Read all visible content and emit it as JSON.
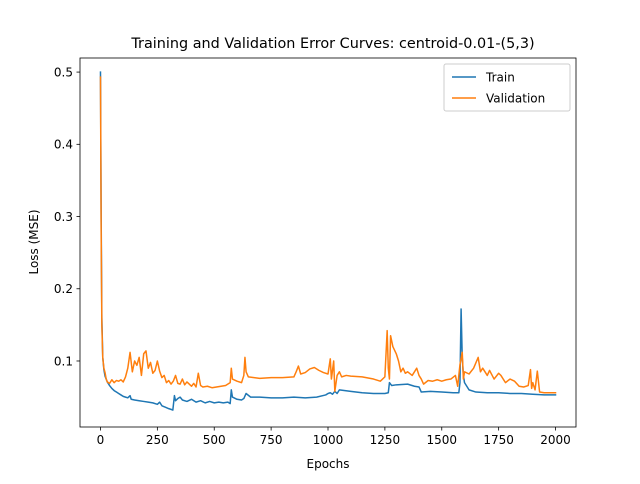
{
  "chart_data": {
    "type": "line",
    "title": "Training and Validation Error Curves: centroid-0.01-(5,3)",
    "xlabel": "Epochs",
    "ylabel": "Loss (MSE)",
    "xlim": [
      -90,
      2090
    ],
    "ylim": [
      0.0086,
      0.5195
    ],
    "xticks": [
      0,
      250,
      500,
      750,
      1000,
      1250,
      1500,
      1750,
      2000
    ],
    "yticks": [
      0.1,
      0.2,
      0.3,
      0.4,
      0.5
    ],
    "grid": false,
    "legend": "top-right",
    "series": [
      {
        "name": "Train",
        "color": "#1f77b4",
        "points": [
          [
            0,
            0.5
          ],
          [
            3,
            0.3
          ],
          [
            6,
            0.16
          ],
          [
            10,
            0.105
          ],
          [
            15,
            0.088
          ],
          [
            20,
            0.079
          ],
          [
            30,
            0.071
          ],
          [
            40,
            0.066
          ],
          [
            50,
            0.062
          ],
          [
            60,
            0.059
          ],
          [
            70,
            0.057
          ],
          [
            80,
            0.055
          ],
          [
            90,
            0.053
          ],
          [
            100,
            0.051
          ],
          [
            110,
            0.05
          ],
          [
            120,
            0.049
          ],
          [
            130,
            0.052
          ],
          [
            135,
            0.047
          ],
          [
            150,
            0.046
          ],
          [
            170,
            0.045
          ],
          [
            190,
            0.044
          ],
          [
            210,
            0.043
          ],
          [
            230,
            0.042
          ],
          [
            250,
            0.04
          ],
          [
            260,
            0.043
          ],
          [
            270,
            0.038
          ],
          [
            285,
            0.036
          ],
          [
            300,
            0.034
          ],
          [
            310,
            0.033
          ],
          [
            318,
            0.032
          ],
          [
            325,
            0.052
          ],
          [
            330,
            0.045
          ],
          [
            340,
            0.048
          ],
          [
            350,
            0.05
          ],
          [
            360,
            0.046
          ],
          [
            380,
            0.044
          ],
          [
            400,
            0.047
          ],
          [
            420,
            0.043
          ],
          [
            440,
            0.045
          ],
          [
            460,
            0.042
          ],
          [
            480,
            0.044
          ],
          [
            500,
            0.042
          ],
          [
            520,
            0.043
          ],
          [
            540,
            0.042
          ],
          [
            560,
            0.043
          ],
          [
            570,
            0.041
          ],
          [
            575,
            0.06
          ],
          [
            580,
            0.05
          ],
          [
            600,
            0.047
          ],
          [
            620,
            0.046
          ],
          [
            630,
            0.048
          ],
          [
            640,
            0.055
          ],
          [
            660,
            0.05
          ],
          [
            700,
            0.05
          ],
          [
            750,
            0.049
          ],
          [
            800,
            0.049
          ],
          [
            850,
            0.05
          ],
          [
            900,
            0.049
          ],
          [
            950,
            0.05
          ],
          [
            990,
            0.053
          ],
          [
            1000,
            0.055
          ],
          [
            1010,
            0.056
          ],
          [
            1020,
            0.054
          ],
          [
            1030,
            0.058
          ],
          [
            1040,
            0.055
          ],
          [
            1050,
            0.06
          ],
          [
            1100,
            0.058
          ],
          [
            1150,
            0.056
          ],
          [
            1200,
            0.055
          ],
          [
            1250,
            0.055
          ],
          [
            1265,
            0.056
          ],
          [
            1270,
            0.07
          ],
          [
            1280,
            0.066
          ],
          [
            1300,
            0.067
          ],
          [
            1350,
            0.068
          ],
          [
            1380,
            0.065
          ],
          [
            1400,
            0.064
          ],
          [
            1410,
            0.057
          ],
          [
            1450,
            0.058
          ],
          [
            1500,
            0.057
          ],
          [
            1550,
            0.056
          ],
          [
            1575,
            0.056
          ],
          [
            1580,
            0.07
          ],
          [
            1585,
            0.172
          ],
          [
            1590,
            0.105
          ],
          [
            1595,
            0.08
          ],
          [
            1600,
            0.07
          ],
          [
            1620,
            0.06
          ],
          [
            1650,
            0.057
          ],
          [
            1700,
            0.056
          ],
          [
            1750,
            0.056
          ],
          [
            1800,
            0.055
          ],
          [
            1850,
            0.055
          ],
          [
            1900,
            0.054
          ],
          [
            1950,
            0.053
          ],
          [
            2000,
            0.053
          ]
        ]
      },
      {
        "name": "Validation",
        "color": "#ff7f0e",
        "points": [
          [
            0,
            0.493
          ],
          [
            3,
            0.28
          ],
          [
            6,
            0.15
          ],
          [
            10,
            0.105
          ],
          [
            15,
            0.09
          ],
          [
            20,
            0.084
          ],
          [
            25,
            0.075
          ],
          [
            30,
            0.071
          ],
          [
            40,
            0.069
          ],
          [
            50,
            0.074
          ],
          [
            60,
            0.07
          ],
          [
            70,
            0.073
          ],
          [
            80,
            0.072
          ],
          [
            90,
            0.074
          ],
          [
            100,
            0.071
          ],
          [
            110,
            0.078
          ],
          [
            120,
            0.09
          ],
          [
            130,
            0.112
          ],
          [
            140,
            0.085
          ],
          [
            150,
            0.1
          ],
          [
            160,
            0.094
          ],
          [
            170,
            0.105
          ],
          [
            180,
            0.08
          ],
          [
            190,
            0.11
          ],
          [
            200,
            0.114
          ],
          [
            210,
            0.09
          ],
          [
            220,
            0.098
          ],
          [
            230,
            0.083
          ],
          [
            240,
            0.087
          ],
          [
            250,
            0.1
          ],
          [
            260,
            0.086
          ],
          [
            270,
            0.077
          ],
          [
            280,
            0.08
          ],
          [
            290,
            0.07
          ],
          [
            300,
            0.073
          ],
          [
            310,
            0.068
          ],
          [
            320,
            0.072
          ],
          [
            330,
            0.08
          ],
          [
            340,
            0.069
          ],
          [
            350,
            0.068
          ],
          [
            360,
            0.075
          ],
          [
            370,
            0.067
          ],
          [
            380,
            0.071
          ],
          [
            390,
            0.068
          ],
          [
            400,
            0.065
          ],
          [
            410,
            0.069
          ],
          [
            420,
            0.064
          ],
          [
            430,
            0.083
          ],
          [
            440,
            0.066
          ],
          [
            450,
            0.064
          ],
          [
            470,
            0.065
          ],
          [
            490,
            0.063
          ],
          [
            510,
            0.064
          ],
          [
            530,
            0.065
          ],
          [
            550,
            0.066
          ],
          [
            570,
            0.07
          ],
          [
            575,
            0.09
          ],
          [
            580,
            0.075
          ],
          [
            600,
            0.072
          ],
          [
            620,
            0.07
          ],
          [
            630,
            0.08
          ],
          [
            635,
            0.105
          ],
          [
            640,
            0.085
          ],
          [
            650,
            0.078
          ],
          [
            700,
            0.076
          ],
          [
            750,
            0.077
          ],
          [
            800,
            0.077
          ],
          [
            850,
            0.078
          ],
          [
            860,
            0.085
          ],
          [
            870,
            0.093
          ],
          [
            880,
            0.082
          ],
          [
            900,
            0.084
          ],
          [
            920,
            0.089
          ],
          [
            940,
            0.091
          ],
          [
            960,
            0.087
          ],
          [
            980,
            0.084
          ],
          [
            1000,
            0.082
          ],
          [
            1010,
            0.103
          ],
          [
            1015,
            0.075
          ],
          [
            1025,
            0.1
          ],
          [
            1030,
            0.058
          ],
          [
            1040,
            0.08
          ],
          [
            1050,
            0.085
          ],
          [
            1060,
            0.078
          ],
          [
            1080,
            0.08
          ],
          [
            1100,
            0.079
          ],
          [
            1150,
            0.078
          ],
          [
            1200,
            0.075
          ],
          [
            1230,
            0.072
          ],
          [
            1250,
            0.078
          ],
          [
            1260,
            0.142
          ],
          [
            1265,
            0.09
          ],
          [
            1270,
            0.075
          ],
          [
            1275,
            0.135
          ],
          [
            1285,
            0.12
          ],
          [
            1300,
            0.11
          ],
          [
            1310,
            0.1
          ],
          [
            1320,
            0.085
          ],
          [
            1330,
            0.09
          ],
          [
            1340,
            0.083
          ],
          [
            1350,
            0.085
          ],
          [
            1370,
            0.08
          ],
          [
            1390,
            0.09
          ],
          [
            1400,
            0.08
          ],
          [
            1410,
            0.075
          ],
          [
            1420,
            0.068
          ],
          [
            1440,
            0.073
          ],
          [
            1460,
            0.072
          ],
          [
            1480,
            0.074
          ],
          [
            1500,
            0.072
          ],
          [
            1520,
            0.074
          ],
          [
            1540,
            0.075
          ],
          [
            1560,
            0.08
          ],
          [
            1570,
            0.065
          ],
          [
            1580,
            0.095
          ],
          [
            1590,
            0.112
          ],
          [
            1595,
            0.075
          ],
          [
            1600,
            0.085
          ],
          [
            1620,
            0.082
          ],
          [
            1640,
            0.09
          ],
          [
            1660,
            0.105
          ],
          [
            1670,
            0.085
          ],
          [
            1680,
            0.09
          ],
          [
            1700,
            0.08
          ],
          [
            1710,
            0.087
          ],
          [
            1730,
            0.075
          ],
          [
            1750,
            0.083
          ],
          [
            1760,
            0.08
          ],
          [
            1780,
            0.07
          ],
          [
            1800,
            0.075
          ],
          [
            1820,
            0.072
          ],
          [
            1840,
            0.065
          ],
          [
            1860,
            0.064
          ],
          [
            1880,
            0.066
          ],
          [
            1890,
            0.088
          ],
          [
            1895,
            0.062
          ],
          [
            1900,
            0.07
          ],
          [
            1910,
            0.06
          ],
          [
            1920,
            0.086
          ],
          [
            1930,
            0.057
          ],
          [
            1950,
            0.056
          ],
          [
            2000,
            0.056
          ]
        ]
      }
    ]
  }
}
